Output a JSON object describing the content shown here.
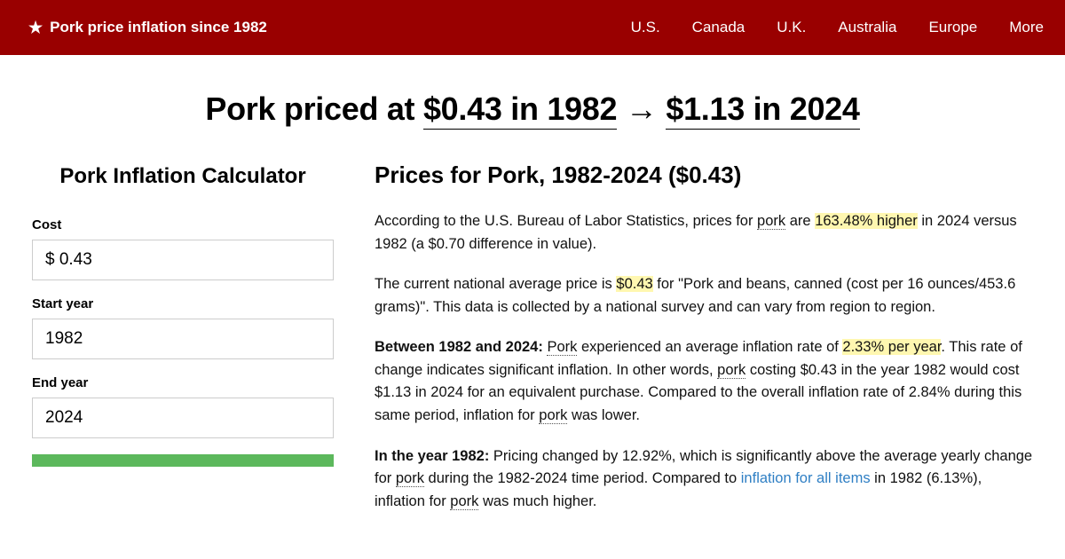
{
  "nav": {
    "title": "Pork price inflation since 1982",
    "links": [
      "U.S.",
      "Canada",
      "U.K.",
      "Australia",
      "Europe",
      "More"
    ]
  },
  "heading": {
    "prefix": "Pork priced at ",
    "from": "$0.43 in 1982",
    "arrow": " → ",
    "to": "$1.13 in 2024"
  },
  "calculator": {
    "title": "Pork Inflation Calculator",
    "cost_label": "Cost",
    "cost_value": "$ 0.43",
    "start_label": "Start year",
    "start_value": "1982",
    "end_label": "End year",
    "end_value": "2024"
  },
  "article": {
    "title": "Prices for Pork, 1982-2024 ($0.43)",
    "p1_a": "According to the U.S. Bureau of Labor Statistics, prices for ",
    "p1_pork": "pork",
    "p1_b": " are ",
    "p1_hl": "163.48% higher",
    "p1_c": " in 2024 versus 1982 (a $0.70 difference in value).",
    "p2_a": "The current national average price is ",
    "p2_hl": "$0.43",
    "p2_b": " for \"Pork and beans, canned (cost per 16 ounces/453.6 grams)\". This data is collected by a national survey and can vary from region to region.",
    "p3_bold": "Between 1982 and 2024:",
    "p3_a": " ",
    "p3_pork1": "Pork",
    "p3_b": " experienced an average inflation rate of ",
    "p3_hl": "2.33% per year",
    "p3_c": ". This rate of change indicates significant inflation. In other words, ",
    "p3_pork2": "pork",
    "p3_d": " costing $0.43 in the year 1982 would cost $1.13 in 2024 for an equivalent purchase. Compared to the overall inflation rate of 2.84% during this same period, inflation for ",
    "p3_pork3": "pork",
    "p3_e": " was lower.",
    "p4_bold": "In the year 1982:",
    "p4_a": " Pricing changed by 12.92%, which is significantly above the average yearly change for ",
    "p4_pork1": "pork",
    "p4_b": " during the 1982-2024 time period. Compared to ",
    "p4_link": "inflation for all items",
    "p4_c": " in 1982 (6.13%), inflation for ",
    "p4_pork2": "pork",
    "p4_d": " was much higher."
  },
  "colors": {
    "navbar_bg": "#990000",
    "highlight_bg": "#fff7b0",
    "button_bg": "#5cb85c",
    "link_color": "#2f7fc4"
  }
}
